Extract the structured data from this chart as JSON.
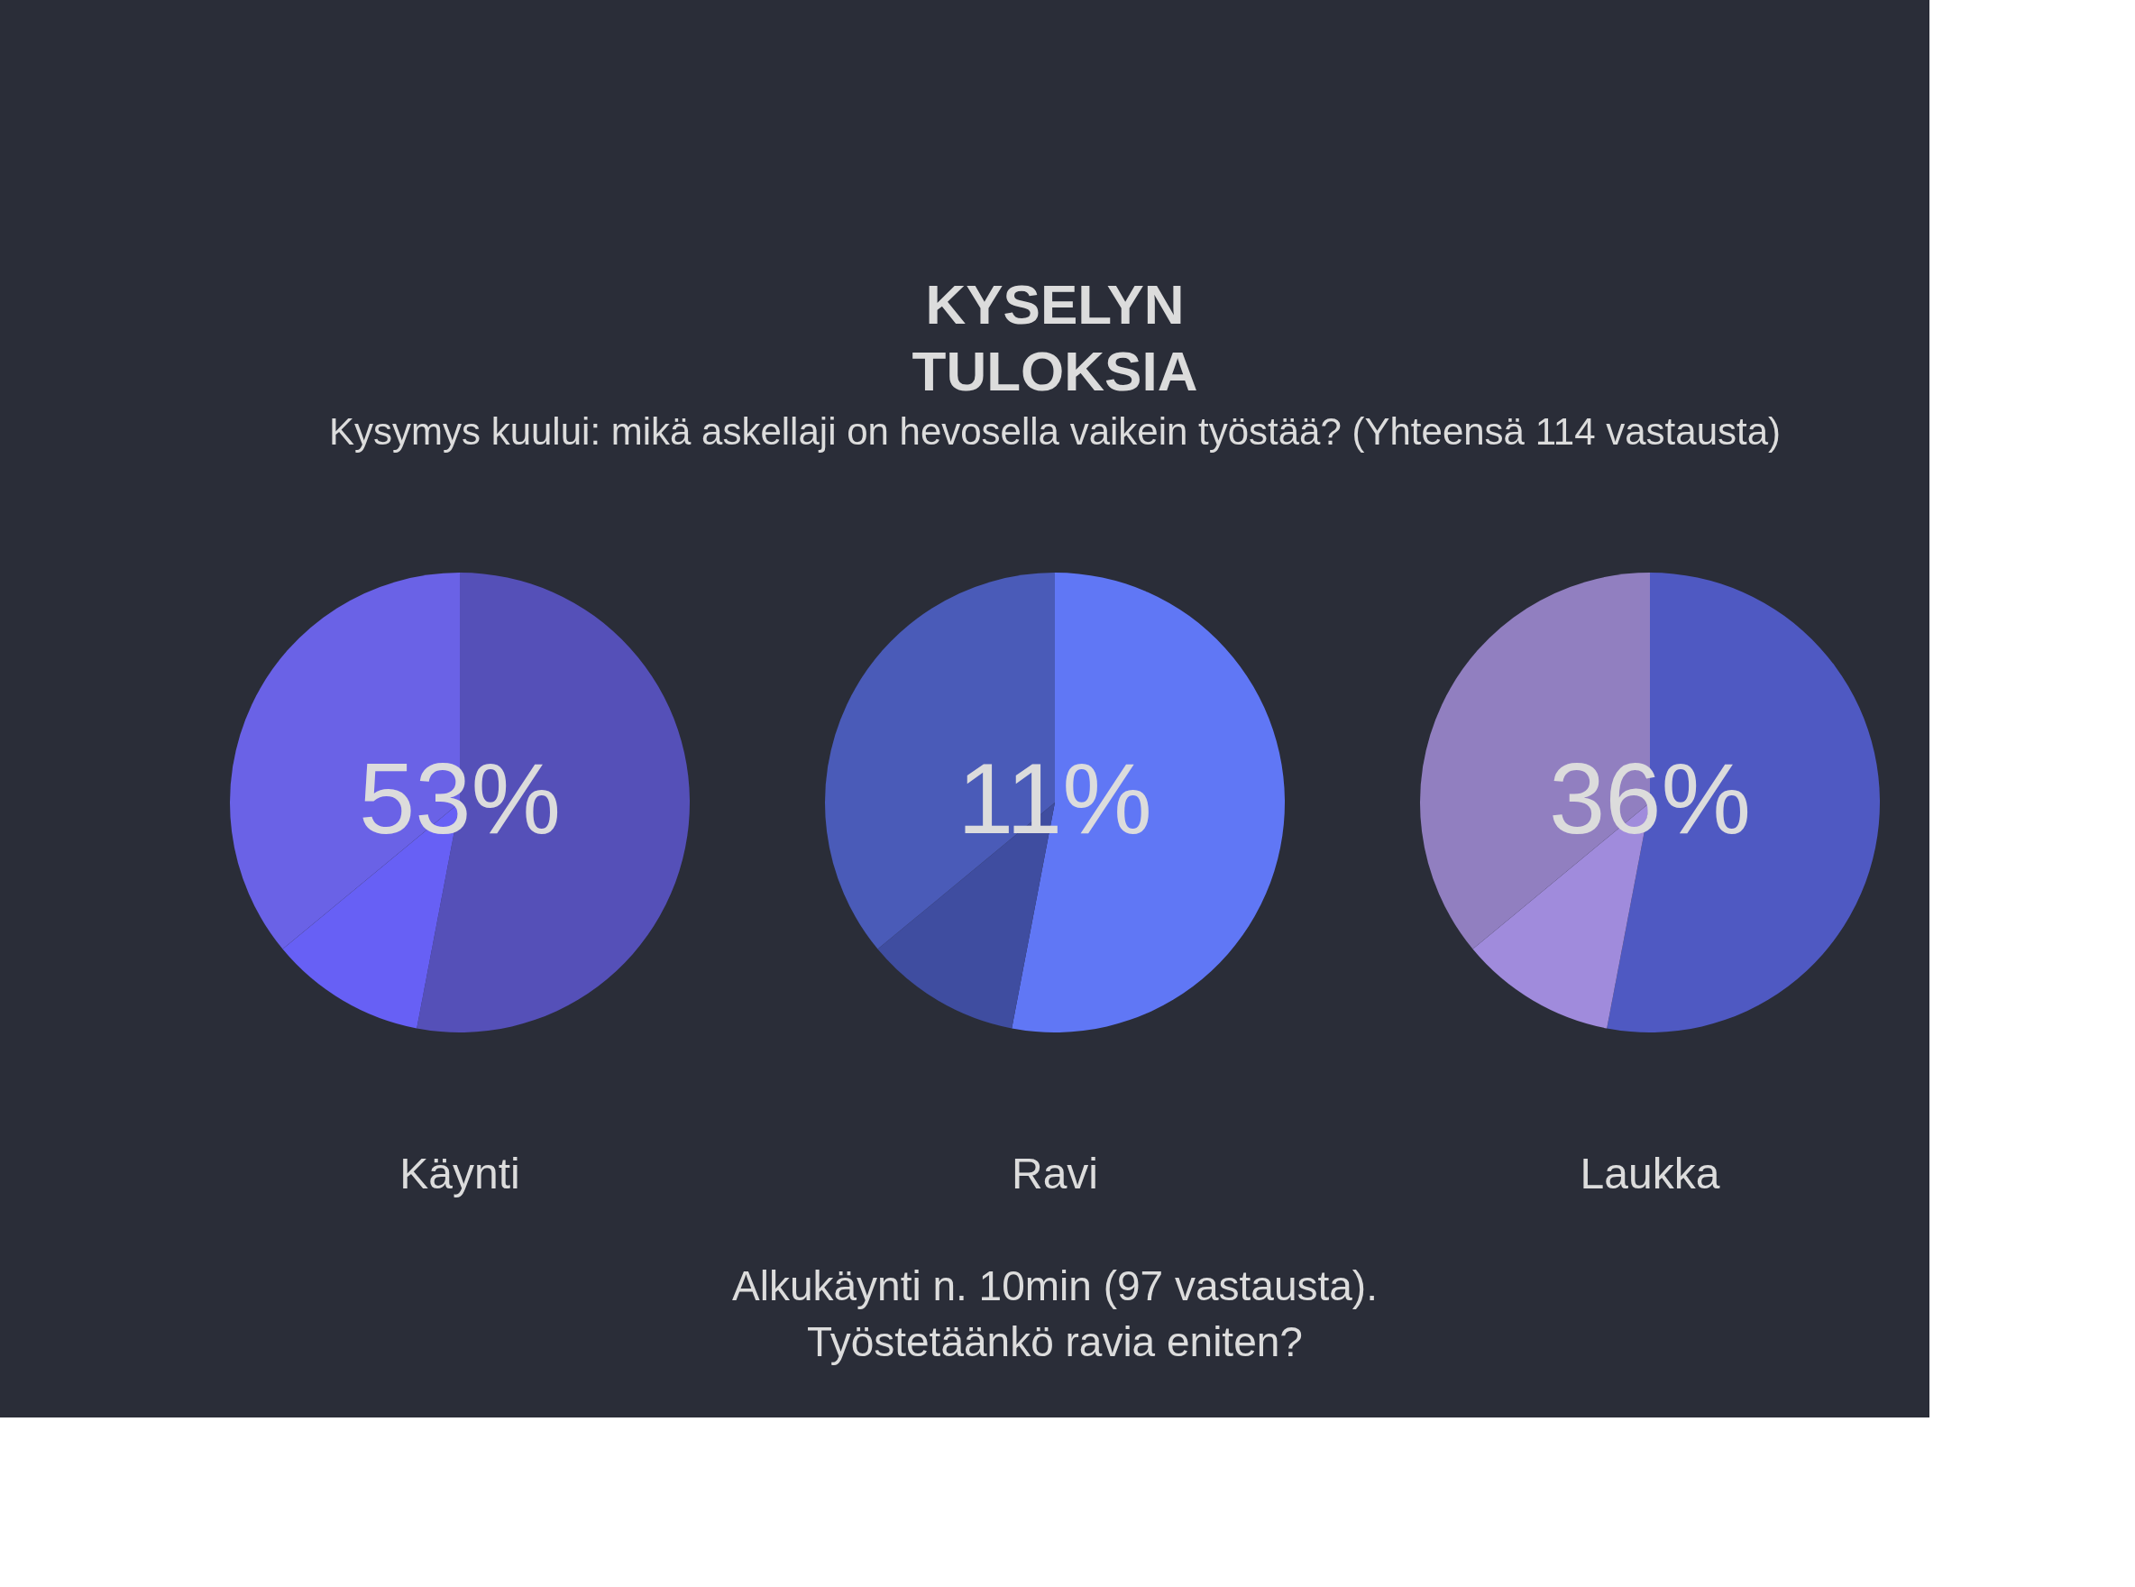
{
  "chart_data": [
    {
      "type": "other",
      "title": "KYSELYN TULOKSIA",
      "subtitle": "Kysymys kuului: mikä askellaji on hevosella vaikein työstää? (Yhteensä 114 vastausta)"
    },
    {
      "type": "pie",
      "title": "Käynti",
      "categories": [
        null,
        null,
        null
      ],
      "values": [
        53,
        11,
        36
      ],
      "colors": [
        "#5550b8",
        "#6760f5",
        "#6a62e6"
      ],
      "annotations": [
        "53%"
      ]
    },
    {
      "type": "pie",
      "title": "Ravi",
      "categories": [
        null,
        null,
        null
      ],
      "values": [
        53,
        11,
        36
      ],
      "colors": [
        "#6077f5",
        "#3f4da0",
        "#4a5bb8"
      ],
      "annotations": [
        "11%"
      ]
    },
    {
      "type": "pie",
      "title": "Laukka",
      "categories": [
        null,
        null,
        null
      ],
      "values": [
        53,
        11,
        36
      ],
      "colors": [
        "#4f59c2",
        "#a08bdc",
        "#917fc0"
      ],
      "annotations": [
        "36%"
      ]
    },
    {
      "type": "other",
      "annotations": [
        "Alkukäynti n. 10min (97 vastausta).",
        "Työstetäänkö ravia eniten?"
      ]
    }
  ]
}
